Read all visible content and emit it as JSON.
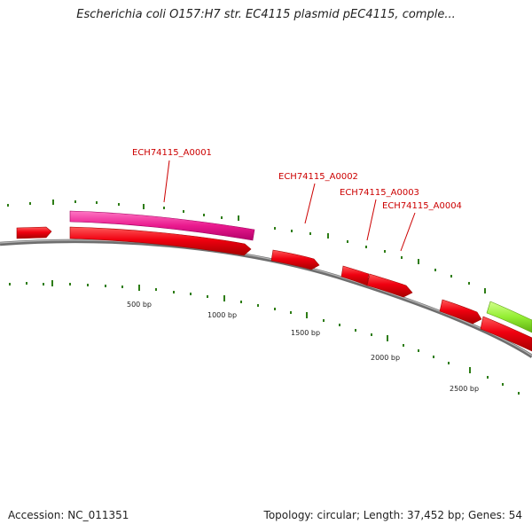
{
  "title": "Escherichia coli O157:H7 str. EC4115 plasmid pEC4115, comple...",
  "accession_text": "Accession: NC_011351",
  "summary_text": "Topology: circular; Length: 37,452 bp; Genes: 54",
  "colors": {
    "backbone": "#808080",
    "gene_red": "#e8000b",
    "gene_pink": "#e8198c",
    "gene_green": "#94ee33",
    "tick": "#2e7d16",
    "label": "#cc0000"
  },
  "gene_labels": [
    "ECH74115_A0001",
    "ECH74115_A0002",
    "ECH74115_A0003",
    "ECH74115_A0004"
  ],
  "scale_labels": [
    "500 bp",
    "1000 bp",
    "1500 bp",
    "2000 bp",
    "2500 bp"
  ]
}
